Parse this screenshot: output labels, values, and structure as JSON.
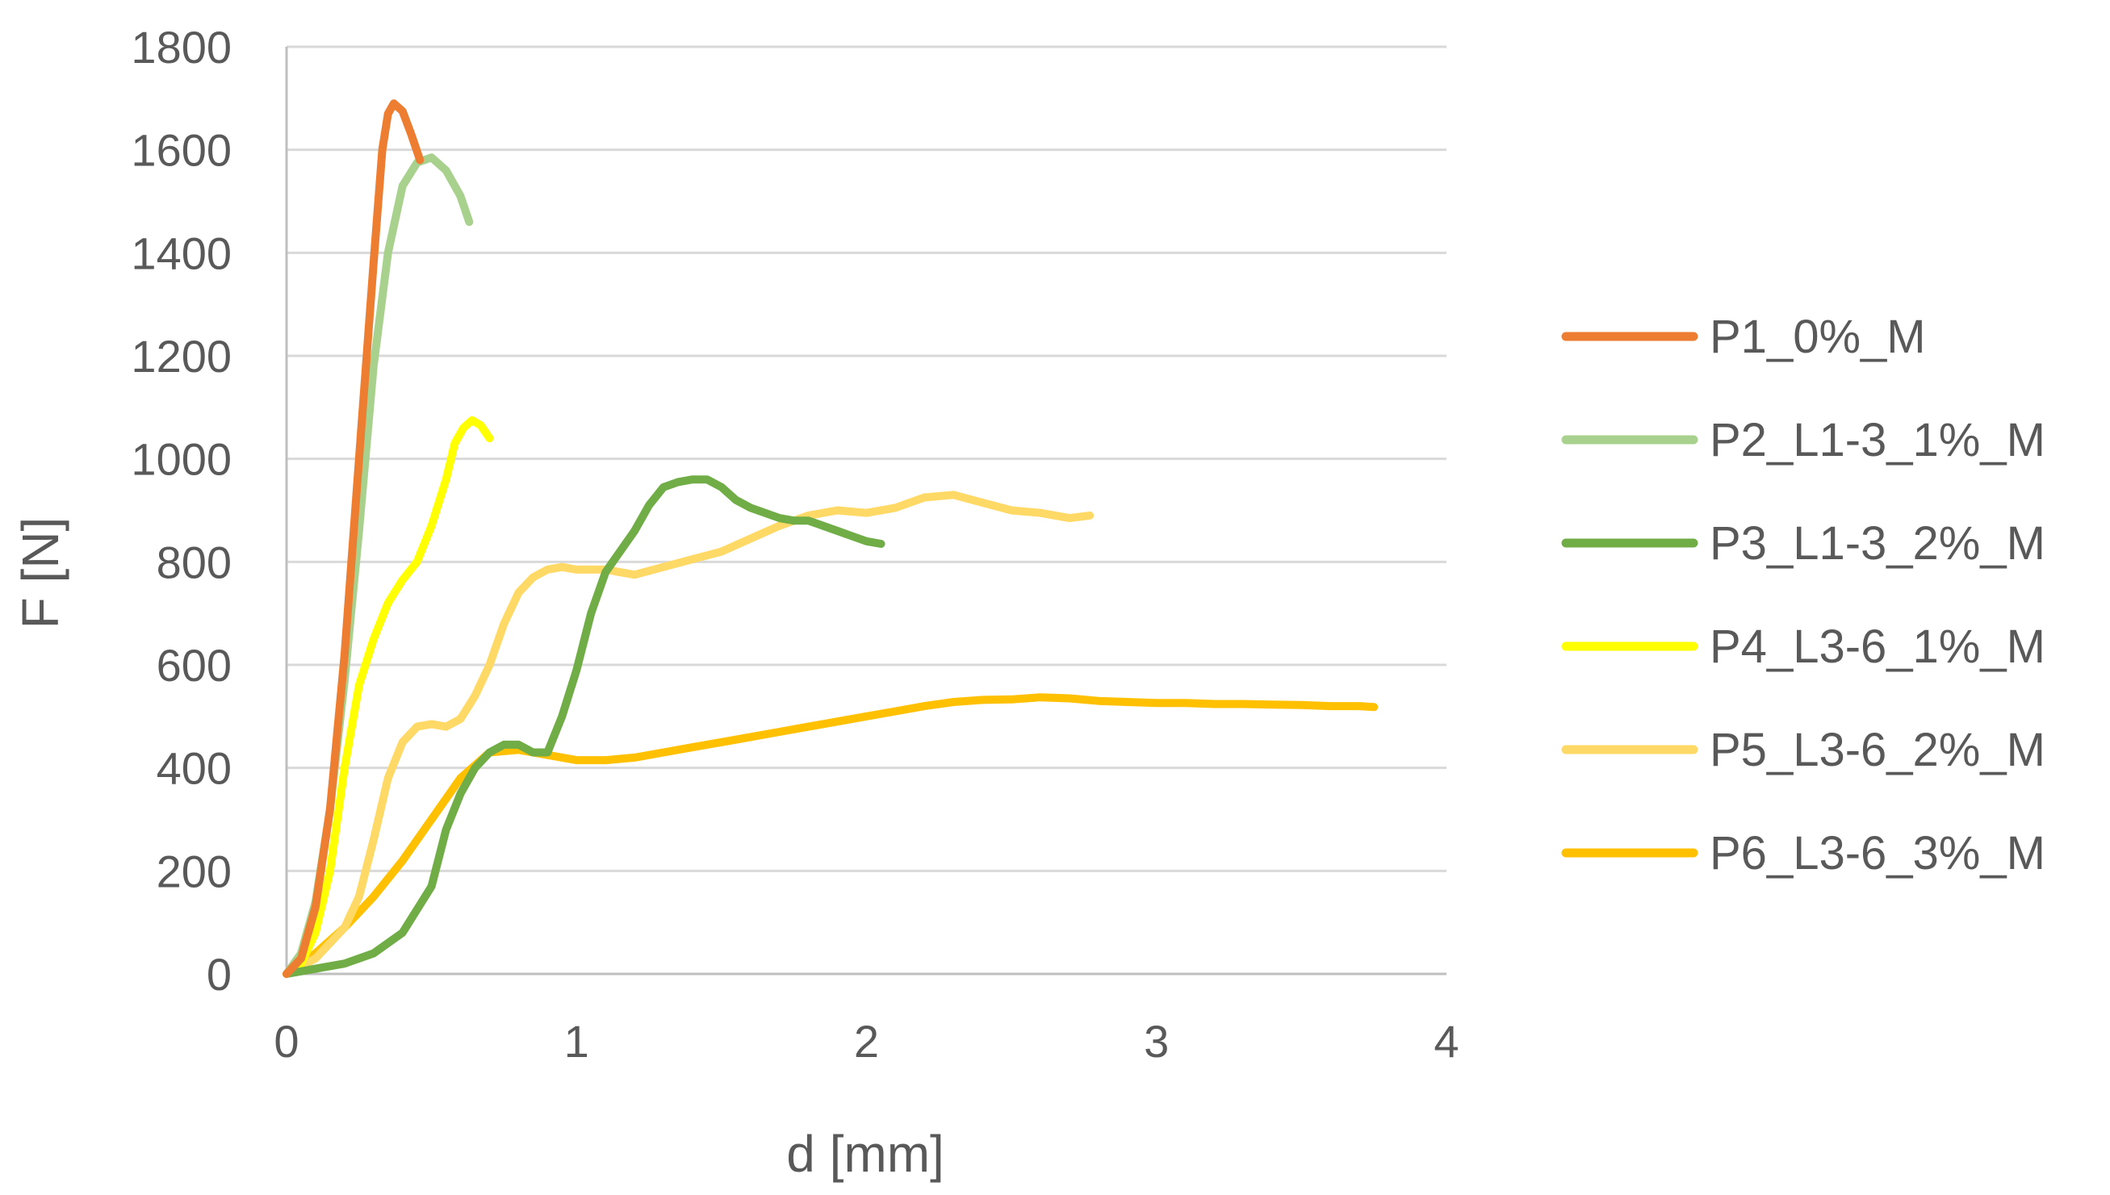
{
  "chart_data": {
    "type": "line",
    "title": "",
    "xlabel": "d [mm]",
    "ylabel": "F [N]",
    "xlim": [
      0,
      4
    ],
    "ylim": [
      0,
      1800
    ],
    "xticks": [
      0,
      1,
      2,
      3,
      4
    ],
    "yticks": [
      0,
      200,
      400,
      600,
      800,
      1000,
      1200,
      1400,
      1600,
      1800
    ],
    "grid": "horizontal",
    "legend_position": "right",
    "series": [
      {
        "name": "P1_0%_M",
        "color": "#ED7D31",
        "points": [
          [
            0,
            0
          ],
          [
            0.05,
            30
          ],
          [
            0.1,
            130
          ],
          [
            0.15,
            320
          ],
          [
            0.2,
            620
          ],
          [
            0.25,
            1000
          ],
          [
            0.3,
            1380
          ],
          [
            0.33,
            1600
          ],
          [
            0.35,
            1670
          ],
          [
            0.37,
            1690
          ],
          [
            0.4,
            1675
          ],
          [
            0.43,
            1630
          ],
          [
            0.46,
            1580
          ]
        ]
      },
      {
        "name": "P2_L1-3_1%_M",
        "color": "#A9D18E",
        "points": [
          [
            0,
            0
          ],
          [
            0.05,
            40
          ],
          [
            0.1,
            140
          ],
          [
            0.15,
            320
          ],
          [
            0.2,
            570
          ],
          [
            0.25,
            860
          ],
          [
            0.3,
            1180
          ],
          [
            0.35,
            1400
          ],
          [
            0.4,
            1530
          ],
          [
            0.45,
            1575
          ],
          [
            0.5,
            1585
          ],
          [
            0.55,
            1560
          ],
          [
            0.6,
            1510
          ],
          [
            0.63,
            1460
          ]
        ]
      },
      {
        "name": "P3_L1-3_2%_M",
        "color": "#70AD47",
        "points": [
          [
            0,
            0
          ],
          [
            0.1,
            10
          ],
          [
            0.2,
            20
          ],
          [
            0.3,
            40
          ],
          [
            0.4,
            80
          ],
          [
            0.5,
            170
          ],
          [
            0.55,
            280
          ],
          [
            0.6,
            350
          ],
          [
            0.65,
            400
          ],
          [
            0.7,
            430
          ],
          [
            0.75,
            445
          ],
          [
            0.8,
            445
          ],
          [
            0.85,
            430
          ],
          [
            0.9,
            430
          ],
          [
            0.95,
            500
          ],
          [
            1.0,
            590
          ],
          [
            1.05,
            700
          ],
          [
            1.1,
            780
          ],
          [
            1.15,
            820
          ],
          [
            1.2,
            860
          ],
          [
            1.25,
            910
          ],
          [
            1.3,
            945
          ],
          [
            1.35,
            955
          ],
          [
            1.4,
            960
          ],
          [
            1.45,
            960
          ],
          [
            1.5,
            945
          ],
          [
            1.55,
            920
          ],
          [
            1.6,
            905
          ],
          [
            1.65,
            895
          ],
          [
            1.7,
            885
          ],
          [
            1.75,
            880
          ],
          [
            1.8,
            880
          ],
          [
            1.85,
            870
          ],
          [
            1.9,
            860
          ],
          [
            1.95,
            850
          ],
          [
            2.0,
            840
          ],
          [
            2.05,
            835
          ]
        ]
      },
      {
        "name": "P4_L3-6_1%_M",
        "color": "#FFFF00",
        "points": [
          [
            0,
            0
          ],
          [
            0.05,
            20
          ],
          [
            0.1,
            80
          ],
          [
            0.15,
            200
          ],
          [
            0.2,
            400
          ],
          [
            0.25,
            560
          ],
          [
            0.3,
            650
          ],
          [
            0.35,
            720
          ],
          [
            0.4,
            765
          ],
          [
            0.45,
            800
          ],
          [
            0.5,
            870
          ],
          [
            0.55,
            960
          ],
          [
            0.58,
            1030
          ],
          [
            0.61,
            1060
          ],
          [
            0.64,
            1075
          ],
          [
            0.67,
            1065
          ],
          [
            0.7,
            1040
          ]
        ]
      },
      {
        "name": "P5_L3-6_2%_M",
        "color": "#FFD966",
        "points": [
          [
            0,
            0
          ],
          [
            0.1,
            30
          ],
          [
            0.2,
            90
          ],
          [
            0.25,
            150
          ],
          [
            0.3,
            260
          ],
          [
            0.35,
            380
          ],
          [
            0.4,
            450
          ],
          [
            0.45,
            480
          ],
          [
            0.5,
            485
          ],
          [
            0.55,
            480
          ],
          [
            0.6,
            495
          ],
          [
            0.65,
            540
          ],
          [
            0.7,
            600
          ],
          [
            0.75,
            680
          ],
          [
            0.8,
            740
          ],
          [
            0.85,
            770
          ],
          [
            0.9,
            785
          ],
          [
            0.95,
            790
          ],
          [
            1.0,
            785
          ],
          [
            1.1,
            785
          ],
          [
            1.2,
            775
          ],
          [
            1.3,
            790
          ],
          [
            1.4,
            805
          ],
          [
            1.5,
            820
          ],
          [
            1.6,
            845
          ],
          [
            1.7,
            870
          ],
          [
            1.8,
            890
          ],
          [
            1.9,
            900
          ],
          [
            2.0,
            895
          ],
          [
            2.1,
            905
          ],
          [
            2.2,
            925
          ],
          [
            2.3,
            930
          ],
          [
            2.4,
            915
          ],
          [
            2.5,
            900
          ],
          [
            2.6,
            895
          ],
          [
            2.7,
            885
          ],
          [
            2.77,
            890
          ]
        ]
      },
      {
        "name": "P6_L3-6_3%_M",
        "color": "#FFC000",
        "points": [
          [
            0,
            0
          ],
          [
            0.1,
            40
          ],
          [
            0.2,
            90
          ],
          [
            0.3,
            150
          ],
          [
            0.4,
            220
          ],
          [
            0.5,
            300
          ],
          [
            0.6,
            380
          ],
          [
            0.7,
            430
          ],
          [
            0.8,
            435
          ],
          [
            0.9,
            425
          ],
          [
            1.0,
            415
          ],
          [
            1.1,
            415
          ],
          [
            1.2,
            420
          ],
          [
            1.3,
            430
          ],
          [
            1.4,
            440
          ],
          [
            1.5,
            450
          ],
          [
            1.6,
            460
          ],
          [
            1.7,
            470
          ],
          [
            1.8,
            480
          ],
          [
            1.9,
            490
          ],
          [
            2.0,
            500
          ],
          [
            2.1,
            510
          ],
          [
            2.2,
            520
          ],
          [
            2.3,
            528
          ],
          [
            2.4,
            532
          ],
          [
            2.5,
            533
          ],
          [
            2.6,
            537
          ],
          [
            2.7,
            535
          ],
          [
            2.8,
            530
          ],
          [
            2.9,
            528
          ],
          [
            3.0,
            526
          ],
          [
            3.1,
            526
          ],
          [
            3.2,
            524
          ],
          [
            3.3,
            524
          ],
          [
            3.4,
            523
          ],
          [
            3.5,
            522
          ],
          [
            3.6,
            520
          ],
          [
            3.7,
            520
          ],
          [
            3.75,
            518
          ]
        ]
      }
    ]
  }
}
